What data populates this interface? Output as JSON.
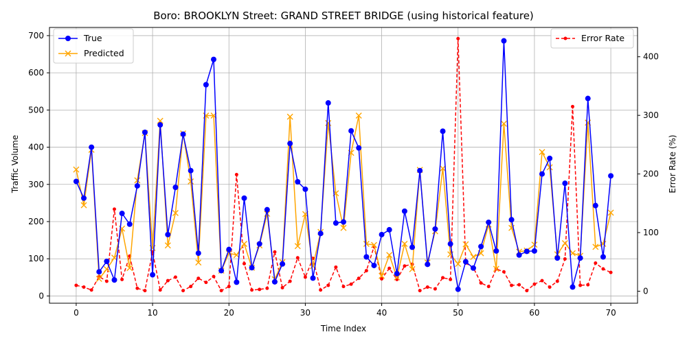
{
  "chart_data": {
    "type": "line",
    "title": "Boro: BROOKLYN Street: GRAND STREET BRIDGE (using historical feature)",
    "xlabel": "Time Index",
    "ylabel": "Traffic Volume",
    "y2label": "Error Rate (%)",
    "xlim": [
      -3.5,
      73.5
    ],
    "ylim": [
      -19.5,
      722
    ],
    "y2lim": [
      -20.5,
      450
    ],
    "x_ticks": [
      0,
      10,
      20,
      30,
      40,
      50,
      60,
      70
    ],
    "y_ticks": [
      0,
      100,
      200,
      300,
      400,
      500,
      600,
      700
    ],
    "y2_ticks": [
      0,
      100,
      200,
      300,
      400
    ],
    "grid": true,
    "legend_left": {
      "placement": "upper-left",
      "entries": [
        "True",
        "Predicted"
      ]
    },
    "legend_right": {
      "placement": "upper-right",
      "entries": [
        "Error Rate"
      ]
    },
    "x": [
      0,
      1,
      2,
      3,
      4,
      5,
      6,
      7,
      8,
      9,
      10,
      11,
      12,
      13,
      14,
      15,
      16,
      17,
      18,
      19,
      20,
      21,
      22,
      23,
      24,
      25,
      26,
      27,
      28,
      29,
      30,
      31,
      32,
      33,
      34,
      35,
      36,
      37,
      38,
      39,
      40,
      41,
      42,
      43,
      44,
      45,
      46,
      47,
      48,
      49,
      50,
      51,
      52,
      53,
      54,
      55,
      56,
      57,
      58,
      59,
      60,
      61,
      62,
      63,
      64,
      65,
      66,
      67,
      68,
      69,
      70
    ],
    "series": [
      {
        "name": "True",
        "color": "#0000ff",
        "marker": "circle",
        "axis": "left",
        "values": [
          308,
          263,
          400,
          65,
          93,
          43,
          222,
          193,
          296,
          440,
          57,
          460,
          165,
          292,
          435,
          337,
          115,
          568,
          636,
          68,
          125,
          37,
          263,
          76,
          140,
          232,
          38,
          86,
          410,
          307,
          287,
          48,
          168,
          519,
          196,
          199,
          444,
          398,
          105,
          82,
          165,
          178,
          60,
          228,
          131,
          337,
          85,
          180,
          443,
          140,
          18,
          92,
          75,
          133,
          198,
          121,
          686,
          205,
          110,
          120,
          121,
          328,
          370,
          102,
          303,
          24,
          102,
          531,
          243,
          105,
          323
        ]
      },
      {
        "name": "Predicted",
        "color": "#ffa500",
        "marker": "x",
        "axis": "left",
        "values": [
          340,
          244,
          393,
          46,
          72,
          103,
          181,
          75,
          311,
          438,
          129,
          471,
          136,
          223,
          437,
          308,
          90,
          485,
          485,
          68,
          115,
          110,
          140,
          76,
          136,
          221,
          45,
          91,
          482,
          134,
          220,
          80,
          172,
          465,
          276,
          183,
          385,
          485,
          140,
          137,
          54,
          110,
          50,
          140,
          72,
          339,
          90,
          174,
          343,
          112,
          86,
          139,
          105,
          115,
          192,
          73,
          463,
          183,
          119,
          122,
          138,
          387,
          346,
          112,
          142,
          115,
          108,
          466,
          132,
          140,
          224
        ]
      },
      {
        "name": "Error Rate",
        "color": "#ff0000",
        "marker": "dot",
        "axis": "right",
        "values": [
          10,
          7,
          2,
          25,
          17,
          140,
          20,
          60,
          5,
          1,
          67,
          2,
          18,
          24,
          1,
          8,
          22,
          15,
          25,
          1,
          8,
          199,
          47,
          2,
          3,
          5,
          67,
          6,
          17,
          57,
          24,
          56,
          2,
          10,
          41,
          8,
          12,
          22,
          35,
          76,
          21,
          39,
          20,
          43,
          46,
          1,
          7,
          4,
          23,
          20,
          431,
          48,
          40,
          14,
          8,
          38,
          33,
          10,
          11,
          1,
          12,
          18,
          7,
          17,
          55,
          315,
          10,
          11,
          48,
          38,
          32
        ]
      }
    ]
  }
}
